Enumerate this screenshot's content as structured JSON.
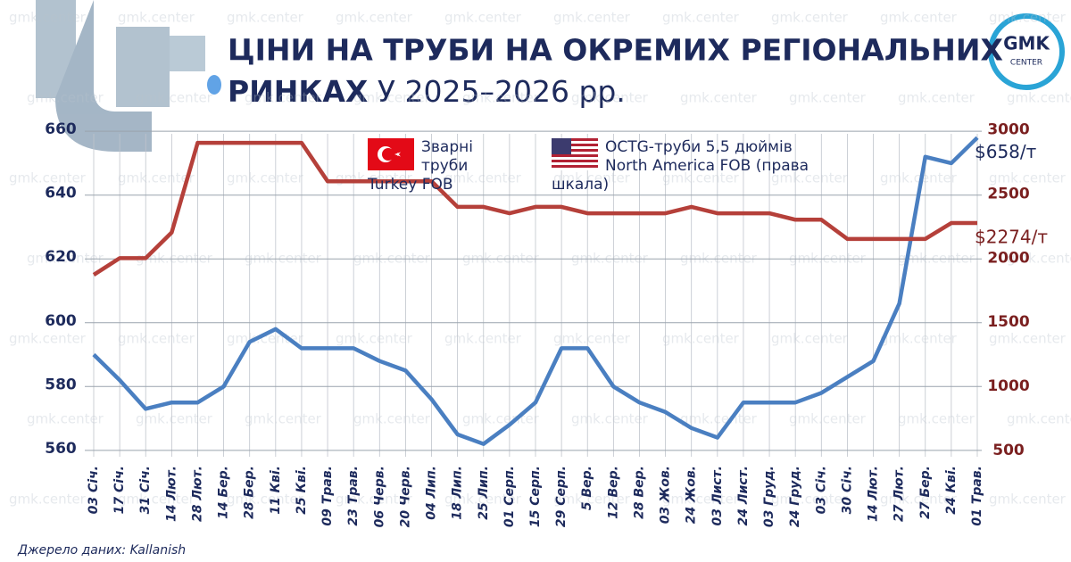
{
  "title_lines": [
    "ЦІНИ НА ТРУБИ НА ОКРЕМИХ РЕГІОНАЛЬНИХ",
    "РИНКАХ"
  ],
  "subtitle": "У 2025–2026 рр.",
  "logo": {
    "top": "GMK",
    "bottom": "CENTER"
  },
  "watermark": "gmk.center",
  "source": "Джерело даних: Kallanish",
  "chart_data": {
    "type": "line",
    "categories": [
      "03 Січ.",
      "17 Січ.",
      "31 Січ.",
      "14 Лют.",
      "28 Лют.",
      "14 Бер.",
      "28 Бер.",
      "11 Кві.",
      "25 Кві.",
      "09 Трав.",
      "23 Трав.",
      "06 Черв.",
      "20 Черв.",
      "04 Лип.",
      "18 Лип.",
      "25 Лип.",
      "01 Серп.",
      "15 Серп.",
      "29 Серп.",
      "5 Вер.",
      "12 Вер.",
      "28 Вер.",
      "03 Жов.",
      "24 Жов.",
      "03 Лист.",
      "24 Лист.",
      "03 Груд.",
      "24 Груд.",
      "03 Січ.",
      "30 Січ.",
      "14 Лют.",
      "27 Лют.",
      "27 Бер.",
      "24 Кві.",
      "01 Трав."
    ],
    "series": [
      {
        "name": "Зварні труби Turkey FOB",
        "color": "#4a7fc1",
        "axis": "y",
        "values": [
          590,
          582,
          573,
          575,
          575,
          580,
          594,
          598,
          592,
          592,
          592,
          588,
          585,
          576,
          565,
          562,
          568,
          575,
          592,
          592,
          580,
          575,
          572,
          567,
          564,
          575,
          575,
          575,
          578,
          583,
          588,
          606,
          652,
          650,
          658
        ]
      },
      {
        "name": "OCTG-труби 5,5 дюймів North America FOB (права шкала)",
        "color": "#b5403a",
        "axis": "y2",
        "values": [
          1870,
          2000,
          2000,
          2200,
          2900,
          2900,
          2900,
          2900,
          2900,
          2600,
          2600,
          2600,
          2600,
          2600,
          2400,
          2400,
          2350,
          2400,
          2400,
          2350,
          2350,
          2350,
          2350,
          2400,
          2350,
          2350,
          2350,
          2300,
          2300,
          2150,
          2150,
          2150,
          2150,
          2274,
          2274
        ]
      }
    ],
    "annotations": [
      "$658/т",
      "$2274/т"
    ],
    "ylim": [
      558,
      662
    ],
    "yticks": [
      560,
      580,
      600,
      620,
      640,
      660
    ],
    "y2lim": [
      450,
      3040
    ],
    "y2ticks": [
      500,
      1000,
      1500,
      2000,
      2500,
      3000
    ],
    "grid": true
  }
}
